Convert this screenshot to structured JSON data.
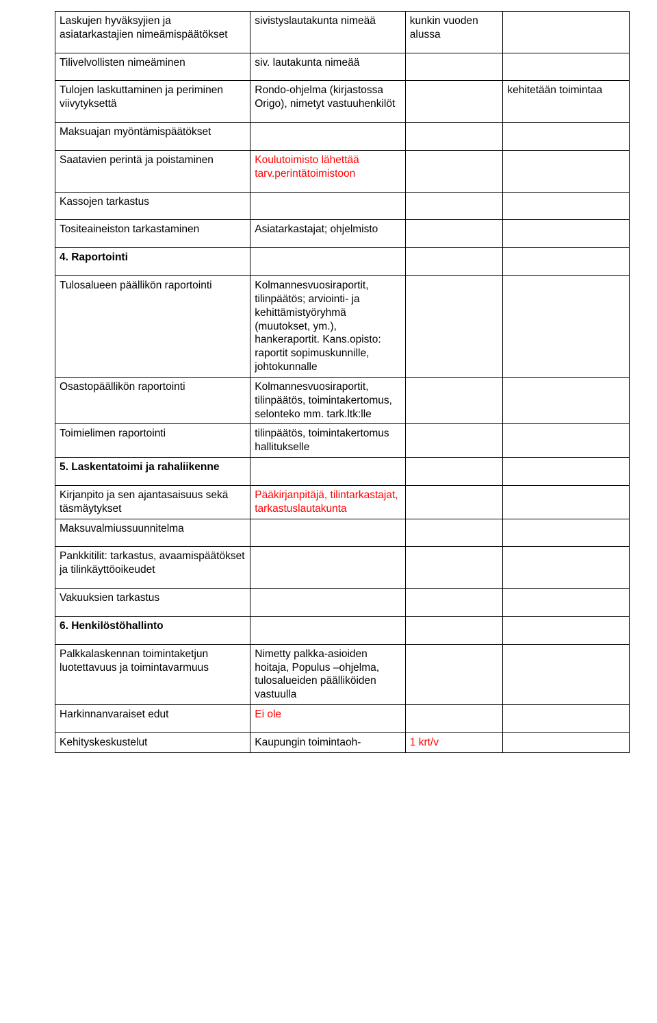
{
  "rows": [
    {
      "c1": "Laskujen hyväksyjien ja asiatarkastajien nimeämispäätökset",
      "c2": "sivistyslautakunta nimeää",
      "c3": "kunkin vuoden alussa",
      "c4": ""
    },
    {
      "c1": "Tilivelvollisten nimeäminen",
      "c2": "siv. lautakunta nimeää",
      "c3": "",
      "c4": ""
    },
    {
      "c1": "Tulojen laskuttaminen ja periminen viivytyksettä",
      "c2": "Rondo-ohjelma (kirjastossa Origo), nimetyt vastuuhenkilöt",
      "c3": "",
      "c4": "kehitetään toimintaa"
    },
    {
      "c1": "Maksuajan myöntämispäätökset",
      "c2": "",
      "c3": "",
      "c4": ""
    },
    {
      "c1": "Saatavien perintä ja poistaminen",
      "c2": "Koulutoimisto lähettää tarv.perintätoimistoon",
      "c2_red": true,
      "c3": "",
      "c4": ""
    },
    {
      "c1": "Kassojen tarkastus",
      "c2": "",
      "c3": "",
      "c4": ""
    },
    {
      "c1": "Tositeaineiston tarkastaminen",
      "c2": "Asiatarkastajat; ohjelmisto",
      "c3": "",
      "c4": ""
    },
    {
      "c1": "4. Raportointi",
      "c1_bold": true,
      "c2": "",
      "c3": "",
      "c4": ""
    },
    {
      "c1": "Tulosalueen päällikön raportointi",
      "c2": "Kolmannesvuosiraportit, tilinpäätös; arviointi- ja kehittämistyöryhmä (muutokset, ym.), hankeraportit. Kans.opisto: raportit sopimuskunnille, johtokunnalle",
      "c3": "",
      "c4": "",
      "pad_small": true
    },
    {
      "c1": "Osastopäällikön raportointi",
      "c2": "Kolmannesvuosiraportit, tilinpäätös, toimintakertomus, selonteko mm. tark.ltk:lle",
      "c3": "",
      "c4": "",
      "pad_small": true
    },
    {
      "c1": "Toimielimen raportointi",
      "c2": "tilinpäätös, toimintakertomus hallitukselle",
      "c3": "",
      "c4": "",
      "pad_small": true
    },
    {
      "c1": "5. Laskentatoimi ja rahaliikenne",
      "c1_bold": true,
      "c2": "",
      "c3": "",
      "c4": ""
    },
    {
      "c1": "Kirjanpito ja sen ajantasaisuus sekä täsmäytykset",
      "c2": "Pääkirjanpitäjä, tilintarkastajat, tarkastuslautakunta",
      "c2_red": true,
      "c3": "",
      "c4": "",
      "pad_small": true
    },
    {
      "c1": "Maksuvalmiussuunnitelma",
      "c2": "",
      "c3": "",
      "c4": ""
    },
    {
      "c1": "Pankkitilit: tarkastus, avaamispäätökset ja tilinkäyttöoikeudet",
      "c2": "",
      "c3": "",
      "c4": ""
    },
    {
      "c1": "Vakuuksien tarkastus",
      "c2": "",
      "c3": "",
      "c4": ""
    },
    {
      "c1": "6. Henkilöstöhallinto",
      "c1_bold": true,
      "c2": "",
      "c3": "",
      "c4": ""
    },
    {
      "c1": "Palkkalaskennan toimintaketjun luotettavuus ja toimintavarmuus",
      "c2": "Nimetty palkka-asioiden hoitaja, Populus –ohjelma, tulosalueiden päälliköiden vastuulla",
      "c3": "",
      "c4": "",
      "pad_small": true
    },
    {
      "c1": "Harkinnanvaraiset edut",
      "c2": "Ei ole",
      "c2_red": true,
      "c3": "",
      "c4": ""
    },
    {
      "c1": "Kehityskeskustelut",
      "c2": "Kaupungin toimintaoh-",
      "c3": "1 krt/v",
      "c3_red": true,
      "c4": "",
      "pad_small": true
    }
  ]
}
